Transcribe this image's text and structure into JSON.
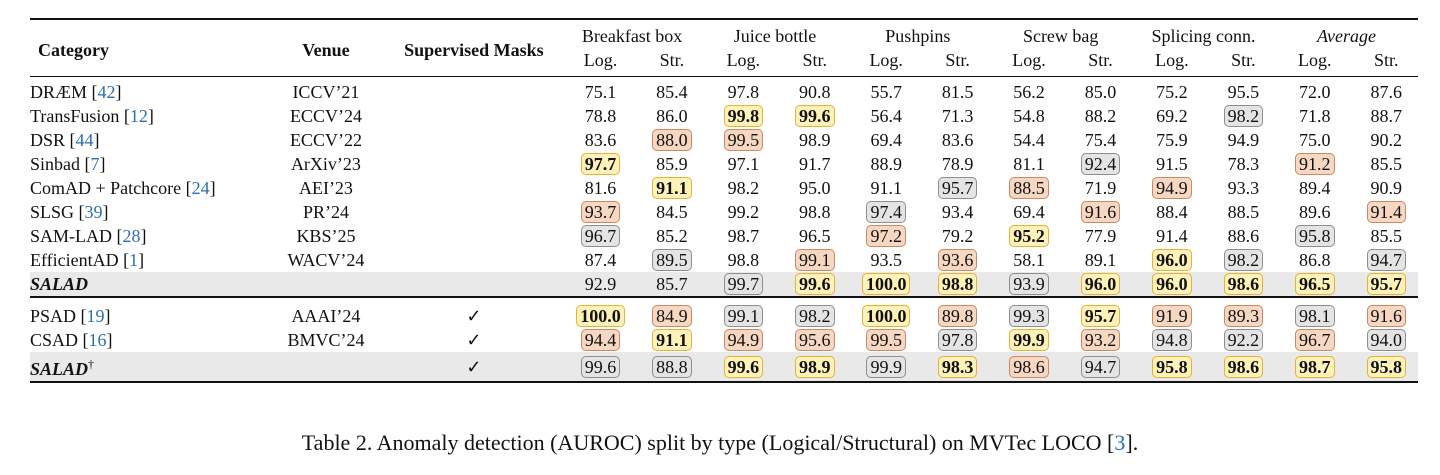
{
  "table": {
    "columns": {
      "category": "Category",
      "venue": "Venue",
      "supervised": "Supervised Masks",
      "groups": [
        "Breakfast box",
        "Juice bottle",
        "Pushpins",
        "Screw bag",
        "Splicing conn.",
        "Average"
      ],
      "sub": [
        "Log.",
        "Str."
      ]
    },
    "section1": [
      {
        "name": "DRÆM",
        "cite": "42",
        "venue": "ICCV’21",
        "sup": "",
        "vals": [
          "75.1",
          "85.4",
          "97.8",
          "90.8",
          "55.7",
          "81.5",
          "56.2",
          "85.0",
          "75.2",
          "95.5",
          "72.0",
          "87.6"
        ],
        "hl": [
          "",
          "",
          "",
          "",
          "",
          "",
          "",
          "",
          "",
          "",
          "",
          ""
        ]
      },
      {
        "name": "TransFusion",
        "cite": "12",
        "venue": "ECCV’24",
        "sup": "",
        "vals": [
          "78.8",
          "86.0",
          "99.8",
          "99.6",
          "56.4",
          "71.3",
          "54.8",
          "88.2",
          "69.2",
          "98.2",
          "71.8",
          "88.7"
        ],
        "hl": [
          "",
          "",
          "gold",
          "gold",
          "",
          "",
          "",
          "",
          "",
          "gray",
          "",
          ""
        ]
      },
      {
        "name": "DSR",
        "cite": "44",
        "venue": "ECCV’22",
        "sup": "",
        "vals": [
          "83.6",
          "88.0",
          "99.5",
          "98.9",
          "69.4",
          "83.6",
          "54.4",
          "75.4",
          "75.9",
          "94.9",
          "75.0",
          "90.2"
        ],
        "hl": [
          "",
          "orange",
          "orange",
          "",
          "",
          "",
          "",
          "",
          "",
          "",
          "",
          ""
        ]
      },
      {
        "name": "Sinbad",
        "cite": "7",
        "venue": "ArXiv’23",
        "sup": "",
        "vals": [
          "97.7",
          "85.9",
          "97.1",
          "91.7",
          "88.9",
          "78.9",
          "81.1",
          "92.4",
          "91.5",
          "78.3",
          "91.2",
          "85.5"
        ],
        "hl": [
          "gold",
          "",
          "",
          "",
          "",
          "",
          "",
          "gray",
          "",
          "",
          "orange",
          ""
        ]
      },
      {
        "name": "ComAD + Patchcore",
        "cite": "24",
        "venue": "AEI’23",
        "sup": "",
        "vals": [
          "81.6",
          "91.1",
          "98.2",
          "95.0",
          "91.1",
          "95.7",
          "88.5",
          "71.9",
          "94.9",
          "93.3",
          "89.4",
          "90.9"
        ],
        "hl": [
          "",
          "gold",
          "",
          "",
          "",
          "gray",
          "orange",
          "",
          "orange",
          "",
          "",
          ""
        ]
      },
      {
        "name": "SLSG",
        "cite": "39",
        "venue": "PR’24",
        "sup": "",
        "vals": [
          "93.7",
          "84.5",
          "99.2",
          "98.8",
          "97.4",
          "93.4",
          "69.4",
          "91.6",
          "88.4",
          "88.5",
          "89.6",
          "91.4"
        ],
        "hl": [
          "orange",
          "",
          "",
          "",
          "gray",
          "",
          "",
          "orange",
          "",
          "",
          "",
          "orange"
        ]
      },
      {
        "name": "SAM-LAD",
        "cite": "28",
        "venue": "KBS’25",
        "sup": "",
        "vals": [
          "96.7",
          "85.2",
          "98.7",
          "96.5",
          "97.2",
          "79.2",
          "95.2",
          "77.9",
          "91.4",
          "88.6",
          "95.8",
          "85.5"
        ],
        "hl": [
          "gray",
          "",
          "",
          "",
          "orange",
          "",
          "gold",
          "",
          "",
          "",
          "gray",
          ""
        ]
      },
      {
        "name": "EfficientAD",
        "cite": "1",
        "venue": "WACV’24",
        "sup": "",
        "vals": [
          "87.4",
          "89.5",
          "98.8",
          "99.1",
          "93.5",
          "93.6",
          "58.1",
          "89.1",
          "96.0",
          "98.2",
          "86.8",
          "94.7"
        ],
        "hl": [
          "",
          "gray",
          "",
          "orange",
          "",
          "orange",
          "",
          "",
          "gold",
          "gray",
          "",
          "gray"
        ]
      },
      {
        "name": "SALAD",
        "cite": "",
        "venue": "",
        "sup": "",
        "ours": true,
        "vals": [
          "92.9",
          "85.7",
          "99.7",
          "99.6",
          "100.0",
          "98.8",
          "93.9",
          "96.0",
          "96.0",
          "98.6",
          "96.5",
          "95.7"
        ],
        "hl": [
          "",
          "",
          "gray",
          "gold",
          "gold",
          "gold",
          "gray",
          "gold",
          "gold",
          "gold",
          "gold",
          "gold"
        ]
      }
    ],
    "section2": [
      {
        "name": "PSAD",
        "cite": "19",
        "venue": "AAAI’24",
        "sup": "✓",
        "vals": [
          "100.0",
          "84.9",
          "99.1",
          "98.2",
          "100.0",
          "89.8",
          "99.3",
          "95.7",
          "91.9",
          "89.3",
          "98.1",
          "91.6"
        ],
        "hl": [
          "gold",
          "orange",
          "gray",
          "gray",
          "gold",
          "orange",
          "gray",
          "gold",
          "orange",
          "orange",
          "gray",
          "orange"
        ]
      },
      {
        "name": "CSAD",
        "cite": "16",
        "venue": "BMVC’24",
        "sup": "✓",
        "vals": [
          "94.4",
          "91.1",
          "94.9",
          "95.6",
          "99.5",
          "97.8",
          "99.9",
          "93.2",
          "94.8",
          "92.2",
          "96.7",
          "94.0"
        ],
        "hl": [
          "orange",
          "gold",
          "orange",
          "orange",
          "orange",
          "gray",
          "gold",
          "orange",
          "gray",
          "gray",
          "orange",
          "gray"
        ]
      },
      {
        "name": "SALAD",
        "sup_mark": "†",
        "cite": "",
        "venue": "",
        "sup": "✓",
        "ours": true,
        "vals": [
          "99.6",
          "88.8",
          "99.6",
          "98.9",
          "99.9",
          "98.3",
          "98.6",
          "94.7",
          "95.8",
          "98.6",
          "98.7",
          "95.8"
        ],
        "hl": [
          "gray",
          "gray",
          "gold",
          "gold",
          "gray",
          "gold",
          "orange",
          "gray",
          "gold",
          "gold",
          "gold",
          "gold"
        ]
      }
    ]
  },
  "caption": {
    "prefix": "Table 2. Anomaly detection (AUROC) split by type (Logical/Structural) on MVTec LOCO [",
    "cite": "3",
    "suffix": "]."
  }
}
